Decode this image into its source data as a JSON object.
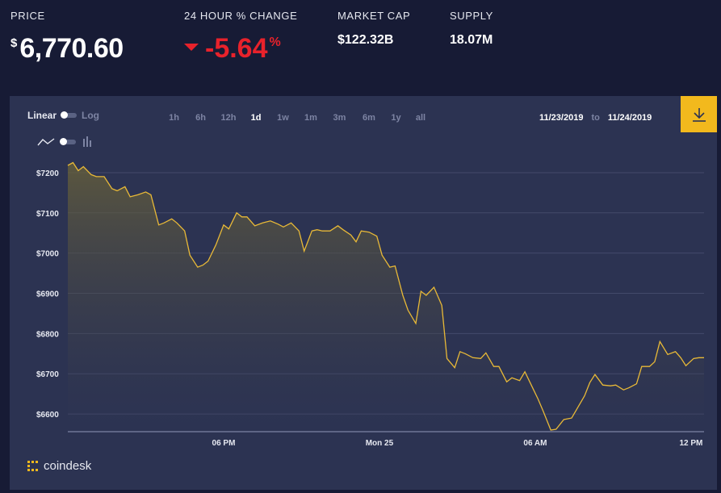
{
  "stats": {
    "price_label": "PRICE",
    "price_currency": "$",
    "price_value": "6,770.60",
    "change_label": "24 HOUR % CHANGE",
    "change_value": "-5.64",
    "change_unit": "%",
    "cap_label": "MARKET CAP",
    "cap_value": "$122.32B",
    "supply_label": "SUPPLY",
    "supply_value": "18.07M"
  },
  "controls": {
    "scale_on": "Linear",
    "scale_off": "Log",
    "ranges": [
      "1h",
      "6h",
      "12h",
      "1d",
      "1w",
      "1m",
      "3m",
      "6m",
      "1y",
      "all"
    ],
    "active_range": "1d",
    "date_from": "11/23/2019",
    "date_to_word": "to",
    "date_to": "11/24/2019"
  },
  "brand": {
    "name": "coindesk"
  },
  "colors": {
    "background": "#171b35",
    "panel": "#2c3352",
    "line": "#e8b937",
    "negative": "#e8222b",
    "download": "#f2b91d"
  },
  "icons": {
    "line": "line-chart-icon",
    "bar": "bar-chart-icon",
    "download": "download-icon",
    "logo": "coindesk-logo-icon",
    "change": "down-arrow-icon"
  },
  "chart_data": {
    "type": "area",
    "title": "",
    "xlabel": "",
    "ylabel": "",
    "ylim": [
      6556,
      7230
    ],
    "yticks": [
      6600,
      6700,
      6800,
      6900,
      7000,
      7100,
      7200
    ],
    "ytick_labels": [
      "$6600",
      "$6700",
      "$6800",
      "$6900",
      "$7000",
      "$7100",
      "$7200"
    ],
    "xticks": [
      {
        "label": "06 PM",
        "hour": 6.0
      },
      {
        "label": "Mon 25",
        "hour": 12.0
      },
      {
        "label": "06 AM",
        "hour": 18.0
      },
      {
        "label": "12 PM",
        "hour": 24.0
      }
    ],
    "xlim_hours": [
      0.0,
      24.5
    ],
    "hours": [
      0.0,
      0.2,
      0.4,
      0.6,
      0.9,
      1.1,
      1.4,
      1.7,
      1.9,
      2.2,
      2.4,
      2.7,
      3.0,
      3.2,
      3.5,
      3.7,
      4.0,
      4.2,
      4.5,
      4.7,
      5.0,
      5.2,
      5.4,
      5.7,
      6.0,
      6.2,
      6.5,
      6.7,
      6.9,
      7.2,
      7.5,
      7.8,
      8.1,
      8.3,
      8.6,
      8.9,
      9.1,
      9.4,
      9.6,
      9.8,
      10.1,
      10.4,
      10.6,
      10.9,
      11.1,
      11.3,
      11.6,
      11.9,
      12.1,
      12.4,
      12.6,
      12.9,
      13.1,
      13.4,
      13.6,
      13.8,
      14.1,
      14.4,
      14.6,
      14.9,
      15.1,
      15.3,
      15.6,
      15.9,
      16.1,
      16.4,
      16.6,
      16.9,
      17.1,
      17.4,
      17.6,
      17.9,
      18.1,
      18.3,
      18.6,
      18.8,
      19.1,
      19.4,
      19.6,
      19.9,
      20.1,
      20.3,
      20.6,
      20.9,
      21.1,
      21.4,
      21.6,
      21.9,
      22.1,
      22.4,
      22.6,
      22.8,
      23.1,
      23.4,
      23.6,
      23.8,
      24.1,
      24.3,
      24.5
    ],
    "values": [
      7218,
      7225,
      7205,
      7215,
      7195,
      7190,
      7190,
      7160,
      7155,
      7165,
      7140,
      7145,
      7152,
      7145,
      7070,
      7075,
      7085,
      7075,
      7055,
      6995,
      6965,
      6970,
      6980,
      7020,
      7070,
      7060,
      7100,
      7090,
      7090,
      7068,
      7075,
      7080,
      7072,
      7065,
      7075,
      7055,
      7005,
      7055,
      7058,
      7055,
      7055,
      7068,
      7058,
      7045,
      7028,
      7055,
      7052,
      7042,
      6995,
      6965,
      6968,
      6895,
      6858,
      6825,
      6905,
      6895,
      6915,
      6870,
      6738,
      6715,
      6755,
      6750,
      6740,
      6738,
      6752,
      6718,
      6718,
      6680,
      6690,
      6683,
      6705,
      6665,
      6638,
      6608,
      6560,
      6562,
      6586,
      6590,
      6612,
      6645,
      6678,
      6698,
      6672,
      6670,
      6672,
      6660,
      6665,
      6675,
      6718,
      6718,
      6730,
      6780,
      6748,
      6755,
      6740,
      6720,
      6738,
      6740,
      6740
    ]
  }
}
